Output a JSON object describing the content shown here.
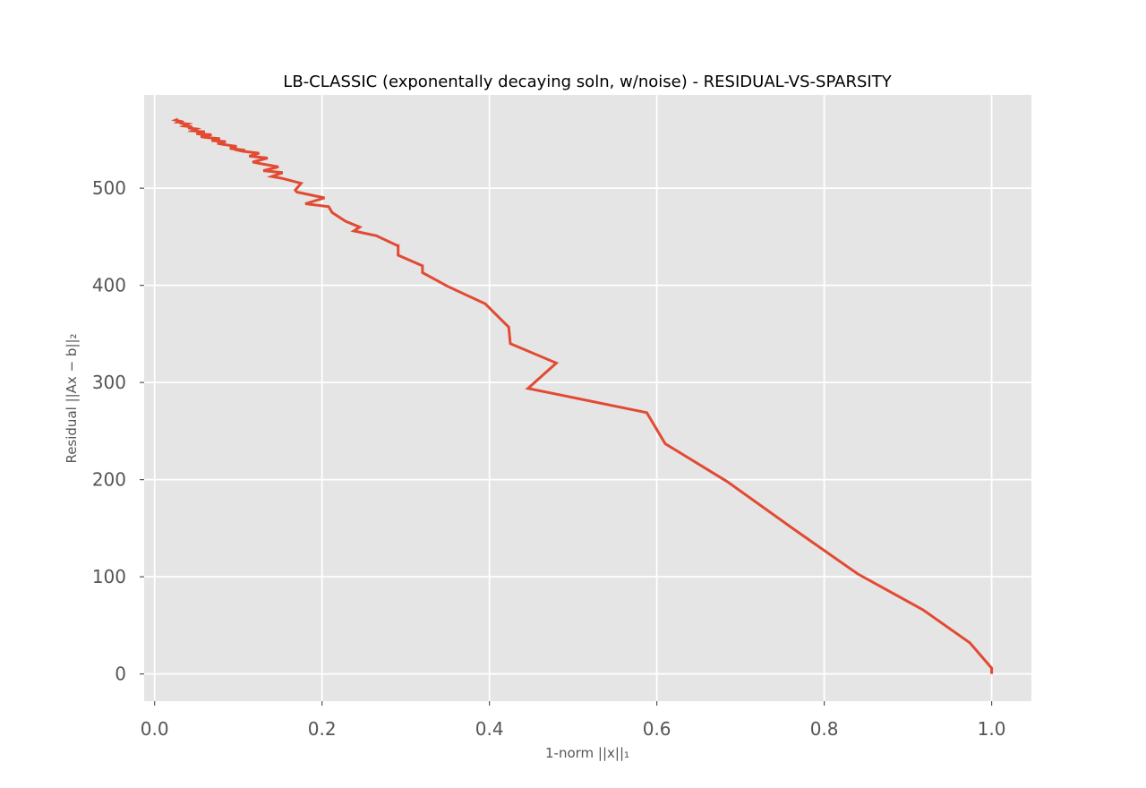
{
  "chart_data": {
    "type": "line",
    "title": "LB-CLASSIC (exponentally decaying soln, w/noise) - RESIDUAL-VS-SPARSITY",
    "xlabel": "1-norm ||x||₁",
    "ylabel": "Residual ||Ax − b||₂",
    "xlim": [
      -0.0125,
      1.0475
    ],
    "ylim": [
      -28,
      596
    ],
    "xticks": [
      0.0,
      0.2,
      0.4,
      0.6,
      0.8,
      1.0
    ],
    "xtick_labels": [
      "0.0",
      "0.2",
      "0.4",
      "0.6",
      "0.8",
      "1.0"
    ],
    "yticks": [
      0,
      100,
      200,
      300,
      400,
      500
    ],
    "ytick_labels": [
      "0",
      "100",
      "200",
      "300",
      "400",
      "500"
    ],
    "grid": true,
    "legend": "none",
    "colors": {
      "background": "#e5e5e5",
      "line": "#e24a33",
      "grid": "#ffffff",
      "tick_text": "#555555"
    },
    "series": [
      {
        "x": [
          1.0,
          1.0,
          0.974,
          0.918,
          0.84,
          0.762,
          0.684,
          0.61,
          0.588,
          0.446,
          0.48,
          0.425,
          0.423,
          0.395,
          0.35,
          0.32,
          0.32,
          0.291,
          0.291,
          0.29,
          0.265,
          0.238,
          0.245,
          0.228,
          0.212,
          0.208,
          0.18,
          0.203,
          0.17,
          0.168,
          0.175,
          0.153,
          0.14,
          0.153,
          0.13,
          0.148,
          0.128,
          0.117,
          0.135,
          0.113,
          0.125,
          0.105,
          0.095,
          0.108,
          0.09,
          0.098,
          0.082,
          0.075,
          0.085,
          0.068,
          0.078,
          0.063,
          0.055,
          0.068,
          0.05,
          0.06,
          0.045,
          0.05,
          0.04,
          0.045,
          0.035,
          0.04,
          0.03,
          0.035,
          0.028,
          0.03,
          0.025,
          0.028
        ],
        "y": [
          0,
          6,
          32,
          66,
          103,
          150,
          198,
          237,
          269,
          294,
          320,
          340,
          357,
          381,
          399,
          413,
          420,
          431,
          441,
          441,
          451,
          456,
          460,
          466,
          475,
          481,
          484,
          490,
          496,
          498,
          505,
          510,
          512,
          516,
          518,
          522,
          525,
          527,
          531,
          533,
          536,
          538,
          540,
          539,
          541,
          543,
          545,
          546,
          548,
          549,
          551,
          552,
          553,
          555,
          556,
          558,
          559,
          561,
          562,
          563,
          564,
          566,
          567,
          568,
          568,
          569,
          570,
          571
        ]
      }
    ]
  }
}
